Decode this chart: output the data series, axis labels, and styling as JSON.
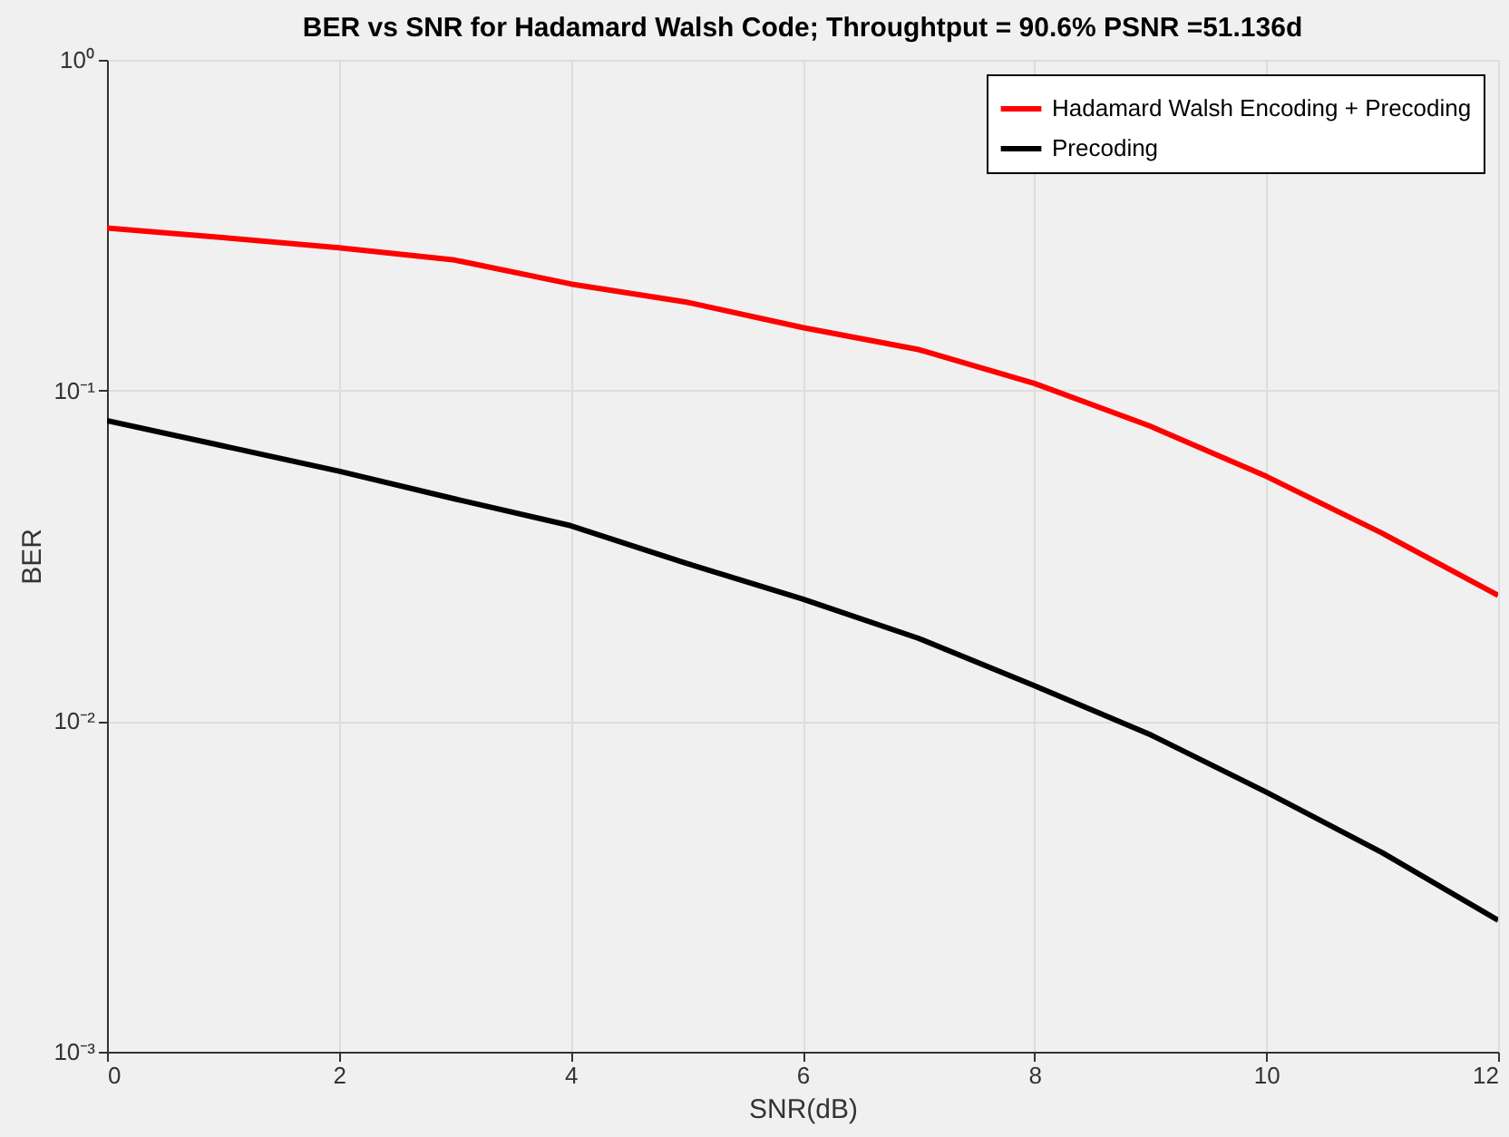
{
  "chart_data": {
    "type": "line",
    "title": "BER vs SNR for Hadamard Walsh Code;  Throughtput =  90.6% PSNR =51.136d",
    "xlabel": "SNR(dB)",
    "ylabel": "BER",
    "x": [
      0,
      1,
      2,
      3,
      4,
      5,
      6,
      7,
      8,
      9,
      10,
      11,
      12
    ],
    "series": [
      {
        "name": "Hadamard Walsh Encoding + Precoding",
        "color": "#ff0000",
        "values": [
          0.31,
          0.29,
          0.27,
          0.248,
          0.21,
          0.185,
          0.155,
          0.133,
          0.105,
          0.078,
          0.055,
          0.037,
          0.024
        ]
      },
      {
        "name": "Precoding",
        "color": "#000000",
        "values": [
          0.081,
          0.068,
          0.057,
          0.047,
          0.039,
          0.03,
          0.0234,
          0.0178,
          0.0128,
          0.0091,
          0.0061,
          0.004,
          0.0025
        ]
      }
    ],
    "log": "y",
    "xlim": [
      0,
      12
    ],
    "xticks": [
      0,
      2,
      4,
      6,
      8,
      10,
      12
    ],
    "ylim": [
      0.001,
      1
    ],
    "yticks": [
      {
        "value": 0.001,
        "label": "10⁻³"
      },
      {
        "value": 0.01,
        "label": "10⁻²"
      },
      {
        "value": 0.1,
        "label": "10⁻¹"
      },
      {
        "value": 1,
        "label": "10⁰"
      }
    ],
    "grid": true,
    "legend": "top right",
    "marker": "none",
    "line_style": "solid"
  }
}
